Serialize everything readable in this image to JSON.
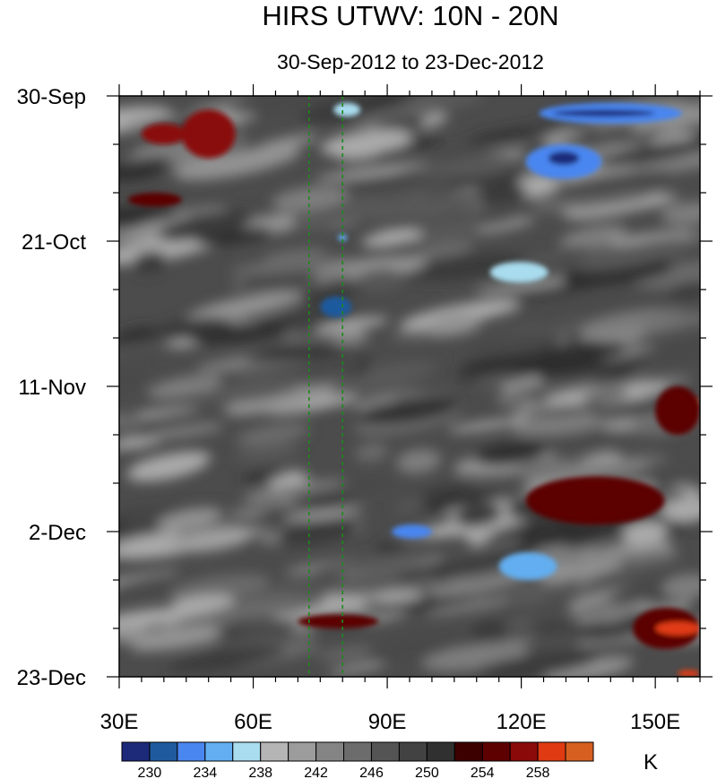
{
  "chart_data": {
    "type": "heatmap",
    "title": "HIRS UTWV: 10N - 20N",
    "subtitle": "30-Sep-2012 to 23-Dec-2012",
    "x_range": [
      30,
      160
    ],
    "x_ticks": [
      {
        "value": 30,
        "label": "30E"
      },
      {
        "value": 60,
        "label": "60E"
      },
      {
        "value": 90,
        "label": "90E"
      },
      {
        "value": 120,
        "label": "120E"
      },
      {
        "value": 150,
        "label": "150E"
      }
    ],
    "y_range": [
      "2012-09-30",
      "2012-12-23"
    ],
    "y_ticks": [
      {
        "value": "2012-09-30",
        "label": "30-Sep"
      },
      {
        "value": "2012-10-21",
        "label": "21-Oct"
      },
      {
        "value": "2012-11-11",
        "label": "11-Nov"
      },
      {
        "value": "2012-12-02",
        "label": "2-Dec"
      },
      {
        "value": "2012-12-23",
        "label": "23-Dec"
      }
    ],
    "reference_lines_x": [
      72.5,
      80
    ],
    "colorbar": {
      "unit": "K",
      "levels": [
        228,
        230,
        232,
        234,
        236,
        238,
        240,
        242,
        244,
        246,
        248,
        250,
        252,
        254,
        256,
        258,
        260
      ],
      "labeled_levels": [
        "230",
        "234",
        "238",
        "242",
        "246",
        "250",
        "254",
        "258"
      ],
      "colors": [
        "#1d2a7a",
        "#1f5a9e",
        "#4a86f0",
        "#62aef0",
        "#a8dcee",
        "#b5b5b5",
        "#9c9c9c",
        "#848484",
        "#6c6c6c",
        "#545454",
        "#424242",
        "#303030",
        "#3d0000",
        "#5c0000",
        "#8a0a0a",
        "#e03a12",
        "#d66020"
      ]
    },
    "features": [
      {
        "x": [
          44,
          56
        ],
        "y": [
          "2012-10-02",
          "2012-10-09"
        ],
        "value": 256
      },
      {
        "x": [
          35,
          45
        ],
        "y": [
          "2012-10-04",
          "2012-10-07"
        ],
        "value": 257
      },
      {
        "x": [
          78,
          84
        ],
        "y": [
          "2012-10-01",
          "2012-10-03"
        ],
        "value": 236
      },
      {
        "x": [
          124,
          156
        ],
        "y": [
          "2012-10-01",
          "2012-10-04"
        ],
        "value": 232
      },
      {
        "x": [
          127,
          150
        ],
        "y": [
          "2012-10-02",
          "2012-10-03"
        ],
        "value": 229
      },
      {
        "x": [
          121,
          138
        ],
        "y": [
          "2012-10-07",
          "2012-10-12"
        ],
        "value": 233
      },
      {
        "x": [
          126,
          133
        ],
        "y": [
          "2012-10-08",
          "2012-10-10"
        ],
        "value": 229
      },
      {
        "x": [
          113,
          126
        ],
        "y": [
          "2012-10-24",
          "2012-10-27"
        ],
        "value": 236
      },
      {
        "x": [
          75,
          82
        ],
        "y": [
          "2012-10-29",
          "2012-11-01"
        ],
        "value": 231
      },
      {
        "x": [
          79,
          81
        ],
        "y": [
          "2012-10-20",
          "2012-10-21"
        ],
        "value": 234
      },
      {
        "x": [
          155,
          160
        ],
        "y": [
          "2012-11-12",
          "2012-11-16"
        ],
        "value": 258
      },
      {
        "x": [
          150,
          160
        ],
        "y": [
          "2012-11-11",
          "2012-11-18"
        ],
        "value": 255
      },
      {
        "x": [
          121,
          152
        ],
        "y": [
          "2012-11-24",
          "2012-12-01"
        ],
        "value": 254
      },
      {
        "x": [
          91,
          100
        ],
        "y": [
          "2012-12-01",
          "2012-12-03"
        ],
        "value": 233
      },
      {
        "x": [
          115,
          128
        ],
        "y": [
          "2012-12-05",
          "2012-12-09"
        ],
        "value": 235
      },
      {
        "x": [
          145,
          160
        ],
        "y": [
          "2012-12-13",
          "2012-12-19"
        ],
        "value": 255
      },
      {
        "x": [
          150,
          160
        ],
        "y": [
          "2012-12-15",
          "2012-12-17"
        ],
        "value": 259
      },
      {
        "x": [
          70,
          88
        ],
        "y": [
          "2012-12-14",
          "2012-12-16"
        ],
        "value": 255
      },
      {
        "x": [
          32,
          44
        ],
        "y": [
          "2012-10-14",
          "2012-10-16"
        ],
        "value": 254
      },
      {
        "x": [
          155,
          160
        ],
        "y": [
          "2012-12-22",
          "2012-12-23"
        ],
        "value": 258
      }
    ],
    "grid": false,
    "legend": "colorbar-bottom"
  }
}
